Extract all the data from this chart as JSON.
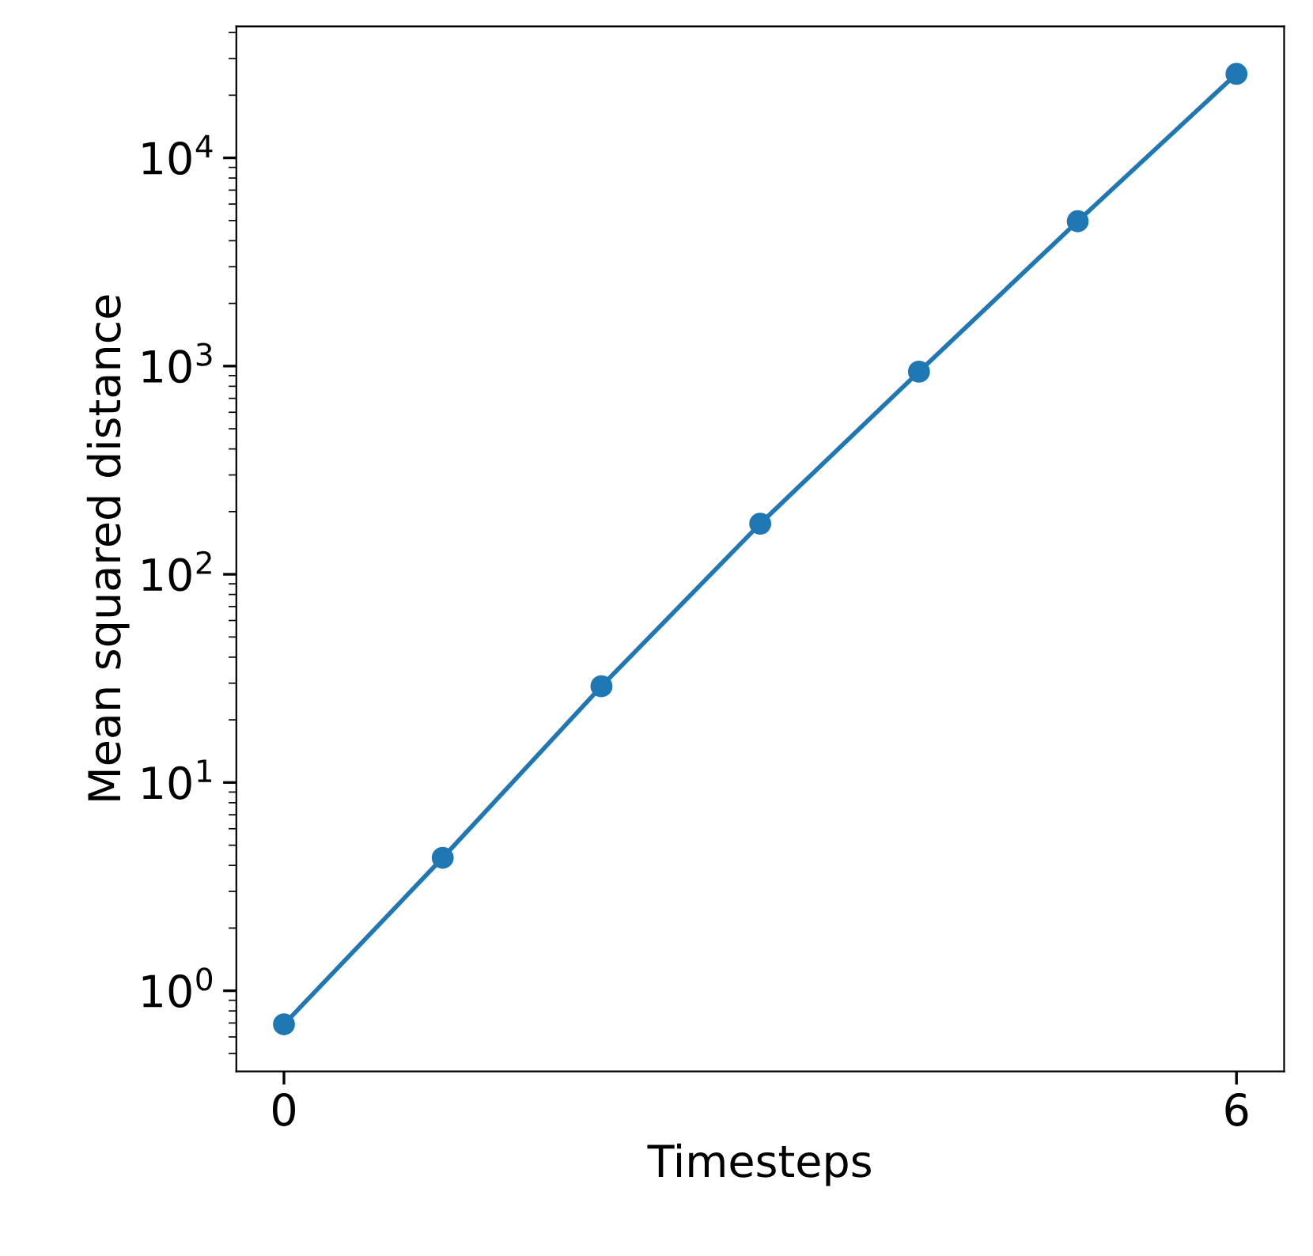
{
  "chart_data": {
    "type": "line",
    "xlabel": "Timesteps",
    "ylabel": "Mean squared distance",
    "x": [
      0,
      1,
      2,
      3,
      4,
      5,
      6
    ],
    "series": [
      {
        "color": "#1f77b4",
        "values": [
          0.69,
          4.35,
          29,
          175,
          940,
          4960,
          25300
        ]
      }
    ],
    "log": "y",
    "marker": "circle",
    "line_style": "solid",
    "xlim": [
      -0.3,
      6.3
    ],
    "xticks": [
      0,
      6
    ],
    "ylim": [
      0.41,
      42800
    ],
    "yticks": [
      {
        "value": 1,
        "label": "10$^{0}$"
      },
      {
        "value": 10,
        "label": "10$^{1}$"
      },
      {
        "value": 100,
        "label": "10$^{2}$"
      },
      {
        "value": 1000,
        "label": "10$^{3}$"
      },
      {
        "value": 10000,
        "label": "10$^{4}$"
      }
    ]
  }
}
